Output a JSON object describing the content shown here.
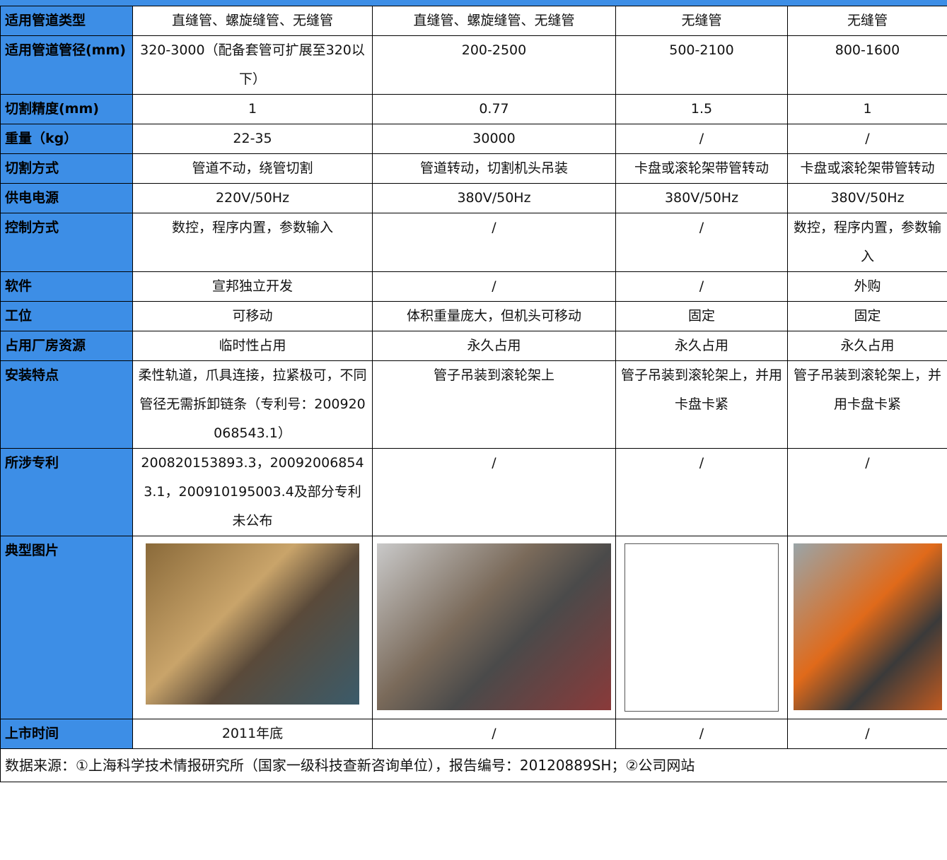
{
  "table": {
    "rows": [
      [
        "适用管道类型",
        "直缝管、螺旋缝管、无缝管",
        "直缝管、螺旋缝管、无缝管",
        "无缝管",
        "无缝管"
      ],
      [
        "适用管道管径(mm)",
        "320-3000（配备套管可扩展至320以下）",
        "200-2500",
        "500-2100",
        "800-1600"
      ],
      [
        "切割精度(mm)",
        "1",
        "0.77",
        "1.5",
        "1"
      ],
      [
        "重量（kg）",
        "22-35",
        "30000",
        "/",
        "/"
      ],
      [
        "切割方式",
        "管道不动，绕管切割",
        "管道转动，切割机头吊装",
        "卡盘或滚轮架带管转动",
        "卡盘或滚轮架带管转动"
      ],
      [
        "供电电源",
        "220V/50Hz",
        "380V/50Hz",
        "380V/50Hz",
        "380V/50Hz"
      ],
      [
        "控制方式",
        "数控，程序内置，参数输入",
        "/",
        "/",
        "数控，程序内置，参数输入"
      ],
      [
        "软件",
        "宣邦独立开发",
        "/",
        "/",
        "外购"
      ],
      [
        "工位",
        "可移动",
        "体积重量庞大，但机头可移动",
        "固定",
        "固定"
      ],
      [
        "占用厂房资源",
        "临时性占用",
        "永久占用",
        "永久占用",
        "永久占用"
      ],
      [
        "安装特点",
        "柔性轨道，爪具连接，拉紧极可，不同管径无需拆卸链条（专利号：200920068543.1）",
        "管子吊装到滚轮架上",
        "管子吊装到滚轮架上，并用卡盘卡紧",
        "管子吊装到滚轮架上，并用卡盘卡紧"
      ],
      [
        "所涉专利",
        "200820153893.3，200920068543.1，200910195003.4及部分专利未公布",
        "/",
        "/",
        "/"
      ],
      [
        "典型图片"
      ],
      [
        "上市时间",
        "2011年底",
        "/",
        "/",
        "/"
      ]
    ],
    "footer": "数据来源：①上海科学技术情报研究所（国家一级科技查新咨询单位），报告编号：20120889SH；②公司网站"
  }
}
